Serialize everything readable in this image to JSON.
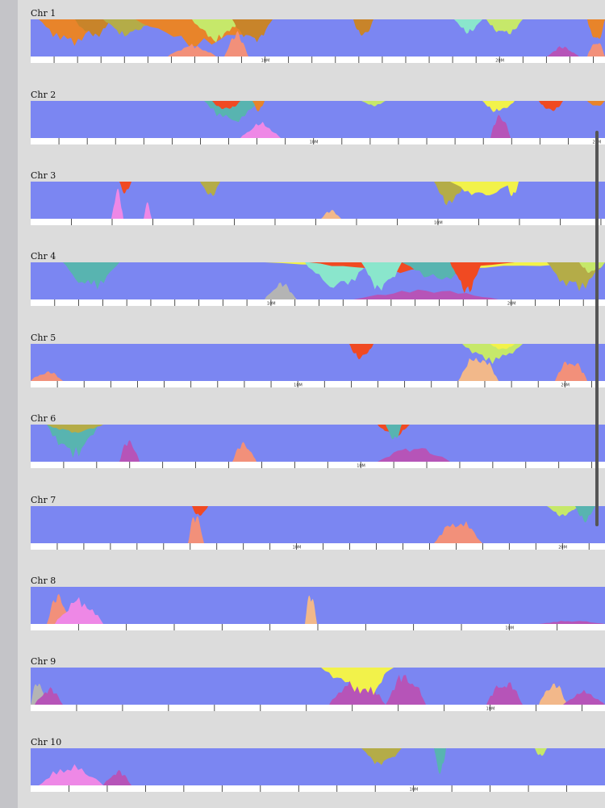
{
  "chart_data": {
    "type": "area",
    "panels": [
      {
        "label": "Chr 1",
        "ticks": [
          {
            "label": "10M",
            "x": 10
          },
          {
            "label": "20M",
            "x": 20
          }
        ],
        "max": 24.5
      },
      {
        "label": "Chr 2",
        "ticks": [
          {
            "label": "10M",
            "x": 10
          },
          {
            "label": "20M",
            "x": 20
          }
        ],
        "max": 20.3
      },
      {
        "label": "Chr 3",
        "ticks": [
          {
            "label": "10M",
            "x": 10
          }
        ],
        "max": 14.1
      },
      {
        "label": "Chr 4",
        "ticks": [
          {
            "label": "10M",
            "x": 10
          },
          {
            "label": "20M",
            "x": 20
          }
        ],
        "max": 23.9
      },
      {
        "label": "Chr 5",
        "ticks": [
          {
            "label": "10M",
            "x": 10
          },
          {
            "label": "20M",
            "x": 20
          }
        ],
        "max": 21.5
      },
      {
        "label": "Chr 6",
        "ticks": [
          {
            "label": "10M",
            "x": 10
          }
        ],
        "max": 17.4
      },
      {
        "label": "Chr 7",
        "ticks": [
          {
            "label": "10M",
            "x": 10
          },
          {
            "label": "20M",
            "x": 20
          }
        ],
        "max": 21.6
      },
      {
        "label": "Chr 8",
        "ticks": [
          {
            "label": "10M",
            "x": 10
          }
        ],
        "max": 12.0
      },
      {
        "label": "Chr 9",
        "ticks": [
          {
            "label": "10M",
            "x": 10
          }
        ],
        "max": 12.5
      },
      {
        "label": "Chr 10",
        "ticks": [
          {
            "label": "10M",
            "x": 10
          }
        ],
        "max": 15.0
      }
    ],
    "colors": {
      "base": "#7b86f2",
      "red": "#f04a22",
      "orange": "#e8842a",
      "yellow": "#f2f24a",
      "lime": "#c6e86a",
      "teal": "#58b4b0",
      "mint": "#8ae6cc",
      "olive": "#b4ac48",
      "brown": "#c8842a",
      "pink": "#ee88e6",
      "magenta": "#b654b8",
      "salmon": "#f2907a",
      "peach": "#f2b88a",
      "gray": "#b4b4b4"
    }
  }
}
